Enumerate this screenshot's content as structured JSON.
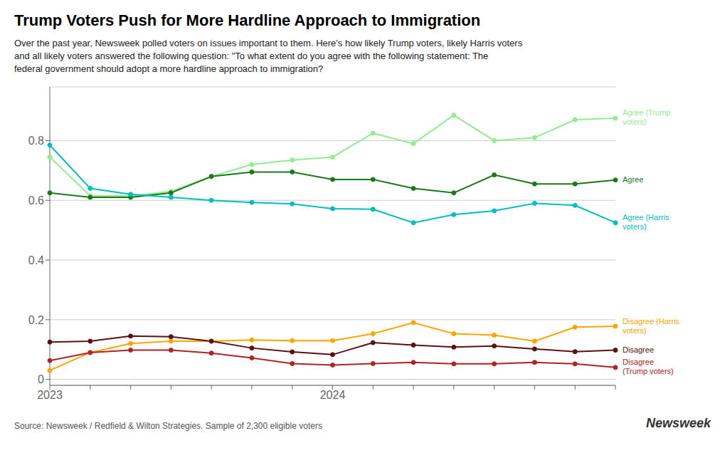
{
  "chart_data": {
    "type": "line",
    "title": "Trump Voters Push for More Hardline Approach to Immigration",
    "subtitle": "Over the past year, Newsweek polled voters on issues important to them. Here's how likely Trump voters, likely Harris voters\nand all likely voters answered the following question: \"To what extent do you agree with the following statement: The\nfederal government should adopt a more hardline approach to immigration?",
    "source": "Source: Newsweek / Redfield & Wilton Strategies. Sample of 2,300 eligible voters",
    "annotations": [
      "Newsweek"
    ],
    "categories": [
      "2023",
      null,
      null,
      null,
      null,
      null,
      null,
      "2024",
      null,
      null,
      null,
      null,
      null,
      null,
      null
    ],
    "series": [
      {
        "name": "Agree (Trump\nvoters)",
        "color": "#90EE90",
        "values": [
          0.745,
          0.615,
          0.615,
          0.63,
          0.68,
          0.72,
          0.735,
          0.745,
          0.825,
          0.79,
          0.885,
          0.8,
          0.81,
          0.87,
          0.875
        ]
      },
      {
        "name": "Agree",
        "color": "#1a7a1a",
        "values": [
          0.625,
          0.61,
          0.61,
          0.625,
          0.68,
          0.695,
          0.695,
          0.67,
          0.67,
          0.64,
          0.625,
          0.685,
          0.655,
          0.655,
          0.668
        ]
      },
      {
        "name": "Agree (Harris\nvoters)",
        "color": "#00BFBF",
        "values": [
          0.785,
          0.64,
          0.62,
          0.61,
          0.6,
          0.593,
          0.588,
          0.572,
          0.57,
          0.525,
          0.552,
          0.565,
          0.59,
          0.583,
          0.525
        ]
      },
      {
        "name": "Disagree (Harris\nvoters)",
        "color": "#FFA500",
        "values": [
          0.03,
          0.09,
          0.12,
          0.128,
          0.128,
          0.132,
          0.13,
          0.13,
          0.153,
          0.19,
          0.153,
          0.148,
          0.128,
          0.175,
          0.178
        ]
      },
      {
        "name": "Disagree",
        "color": "#5C1010",
        "values": [
          0.125,
          0.128,
          0.145,
          0.143,
          0.128,
          0.105,
          0.092,
          0.083,
          0.123,
          0.115,
          0.108,
          0.112,
          0.102,
          0.093,
          0.098
        ]
      },
      {
        "name": "Disagree\n(Trump voters)",
        "color": "#B22222",
        "values": [
          0.063,
          0.09,
          0.098,
          0.098,
          0.088,
          0.072,
          0.053,
          0.048,
          0.053,
          0.057,
          0.052,
          0.052,
          0.057,
          0.052,
          0.04
        ]
      }
    ],
    "ylim": [
      -0.02,
      0.98
    ],
    "yticks": [
      0,
      0.2,
      0.4,
      0.6,
      0.8
    ],
    "grid": true,
    "marker": "circle"
  }
}
